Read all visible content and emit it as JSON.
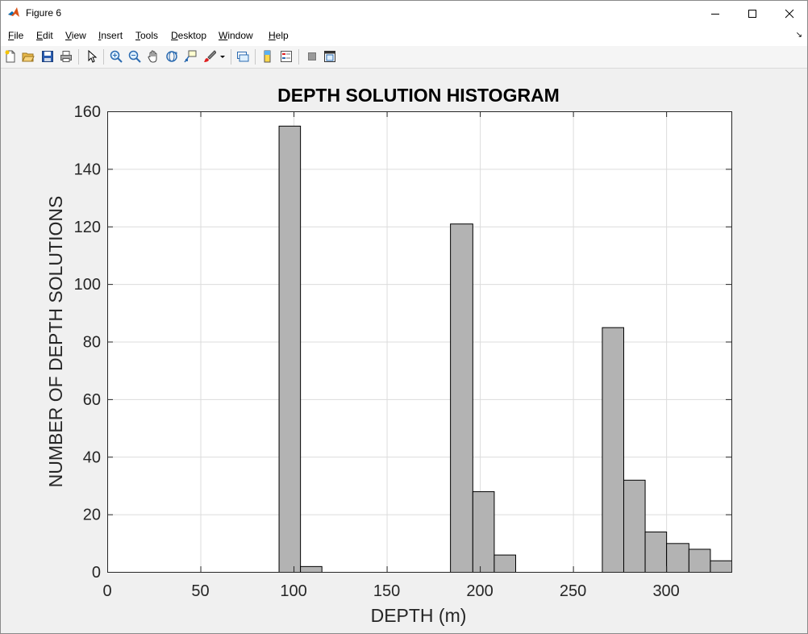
{
  "window": {
    "title": "Figure 6"
  },
  "menu": {
    "items": [
      "File",
      "Edit",
      "View",
      "Insert",
      "Tools",
      "Desktop",
      "Window",
      "Help"
    ]
  },
  "toolbar": {
    "icons": [
      "new-figure-icon",
      "open-file-icon",
      "save-icon",
      "print-icon",
      "select-arrow-icon",
      "zoom-in-icon",
      "zoom-out-icon",
      "pan-hand-icon",
      "rotate-3d-icon",
      "data-cursor-icon",
      "brush-icon",
      "link-plot-icon",
      "colorbar-icon",
      "legend-icon",
      "hide-plot-tools-icon",
      "show-plot-tools-icon"
    ]
  },
  "chart_data": {
    "type": "bar",
    "title": "DEPTH SOLUTION HISTOGRAM",
    "xlabel": "DEPTH (m)",
    "ylabel": "NUMBER OF DEPTH SOLUTIONS",
    "xlim": [
      0,
      335
    ],
    "ylim": [
      0,
      160
    ],
    "xticks": [
      0,
      50,
      100,
      150,
      200,
      250,
      300
    ],
    "yticks": [
      0,
      20,
      40,
      60,
      80,
      100,
      120,
      140,
      160
    ],
    "grid": true,
    "bar_color": "#b3b3b3",
    "bar_edge_color": "#000000",
    "bins": [
      {
        "x0": 92,
        "x1": 103.5,
        "count": 155
      },
      {
        "x0": 103.5,
        "x1": 115,
        "count": 2
      },
      {
        "x0": 184,
        "x1": 196,
        "count": 121
      },
      {
        "x0": 196,
        "x1": 207.5,
        "count": 28
      },
      {
        "x0": 207.5,
        "x1": 219,
        "count": 6
      },
      {
        "x0": 265.5,
        "x1": 277,
        "count": 85
      },
      {
        "x0": 277,
        "x1": 288.5,
        "count": 32
      },
      {
        "x0": 288.5,
        "x1": 300,
        "count": 14
      },
      {
        "x0": 300,
        "x1": 312,
        "count": 10
      },
      {
        "x0": 312,
        "x1": 323.5,
        "count": 8
      },
      {
        "x0": 323.5,
        "x1": 335,
        "count": 4
      }
    ]
  }
}
